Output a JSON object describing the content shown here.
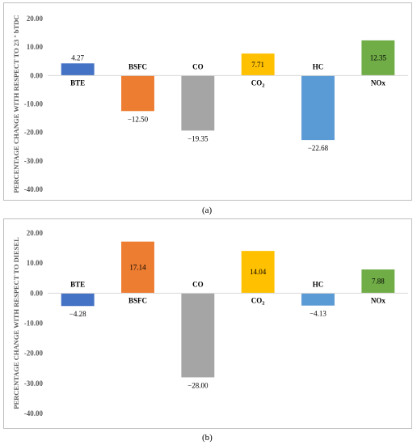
{
  "figure": {
    "caption_a": "(a)",
    "caption_b": "(b)"
  },
  "chart_data": [
    {
      "type": "bar",
      "ylabel": "PERCENTAGE CHANGE WITH RESPECT TO 23 ° bTDC",
      "ylim": [
        -40,
        20
      ],
      "yticks": [
        20,
        10,
        0,
        -10,
        -20,
        -30,
        -40
      ],
      "ytick_labels": [
        "20.00",
        "10.00",
        "0.00",
        "-10.00",
        "-20.00",
        "-30.00",
        "-40.00"
      ],
      "grid": false,
      "categories": [
        "BTE",
        "BSFC",
        "CO",
        "CO2",
        "HC",
        "NOx"
      ],
      "values": [
        4.27,
        -12.5,
        -19.35,
        7.71,
        -22.68,
        12.35
      ],
      "value_labels": [
        "4.27",
        "−12.50",
        "−19.35",
        "7.71",
        "−22.68",
        "12.35"
      ],
      "colors": [
        "#4472c4",
        "#ed7d31",
        "#a5a5a5",
        "#ffc000",
        "#5b9bd5",
        "#70ad47"
      ]
    },
    {
      "type": "bar",
      "ylabel": "PERCENTAGE CHANGE WITH RESPECT TO DIESEL",
      "ylim": [
        -40,
        20
      ],
      "yticks": [
        20,
        10,
        0,
        -10,
        -20,
        -30,
        -40
      ],
      "ytick_labels": [
        "20.00",
        "10.00",
        "0.00",
        "-10.00",
        "-20.00",
        "-30.00",
        "-40.00"
      ],
      "grid": false,
      "categories": [
        "BTE",
        "BSFC",
        "CO",
        "CO2",
        "HC",
        "NOx"
      ],
      "values": [
        -4.28,
        17.14,
        -28.0,
        14.04,
        -4.13,
        7.88
      ],
      "value_labels": [
        "−4.28",
        "17.14",
        "−28.00",
        "14.04",
        "−4.13",
        "7.88"
      ],
      "colors": [
        "#4472c4",
        "#ed7d31",
        "#a5a5a5",
        "#ffc000",
        "#5b9bd5",
        "#70ad47"
      ]
    }
  ]
}
